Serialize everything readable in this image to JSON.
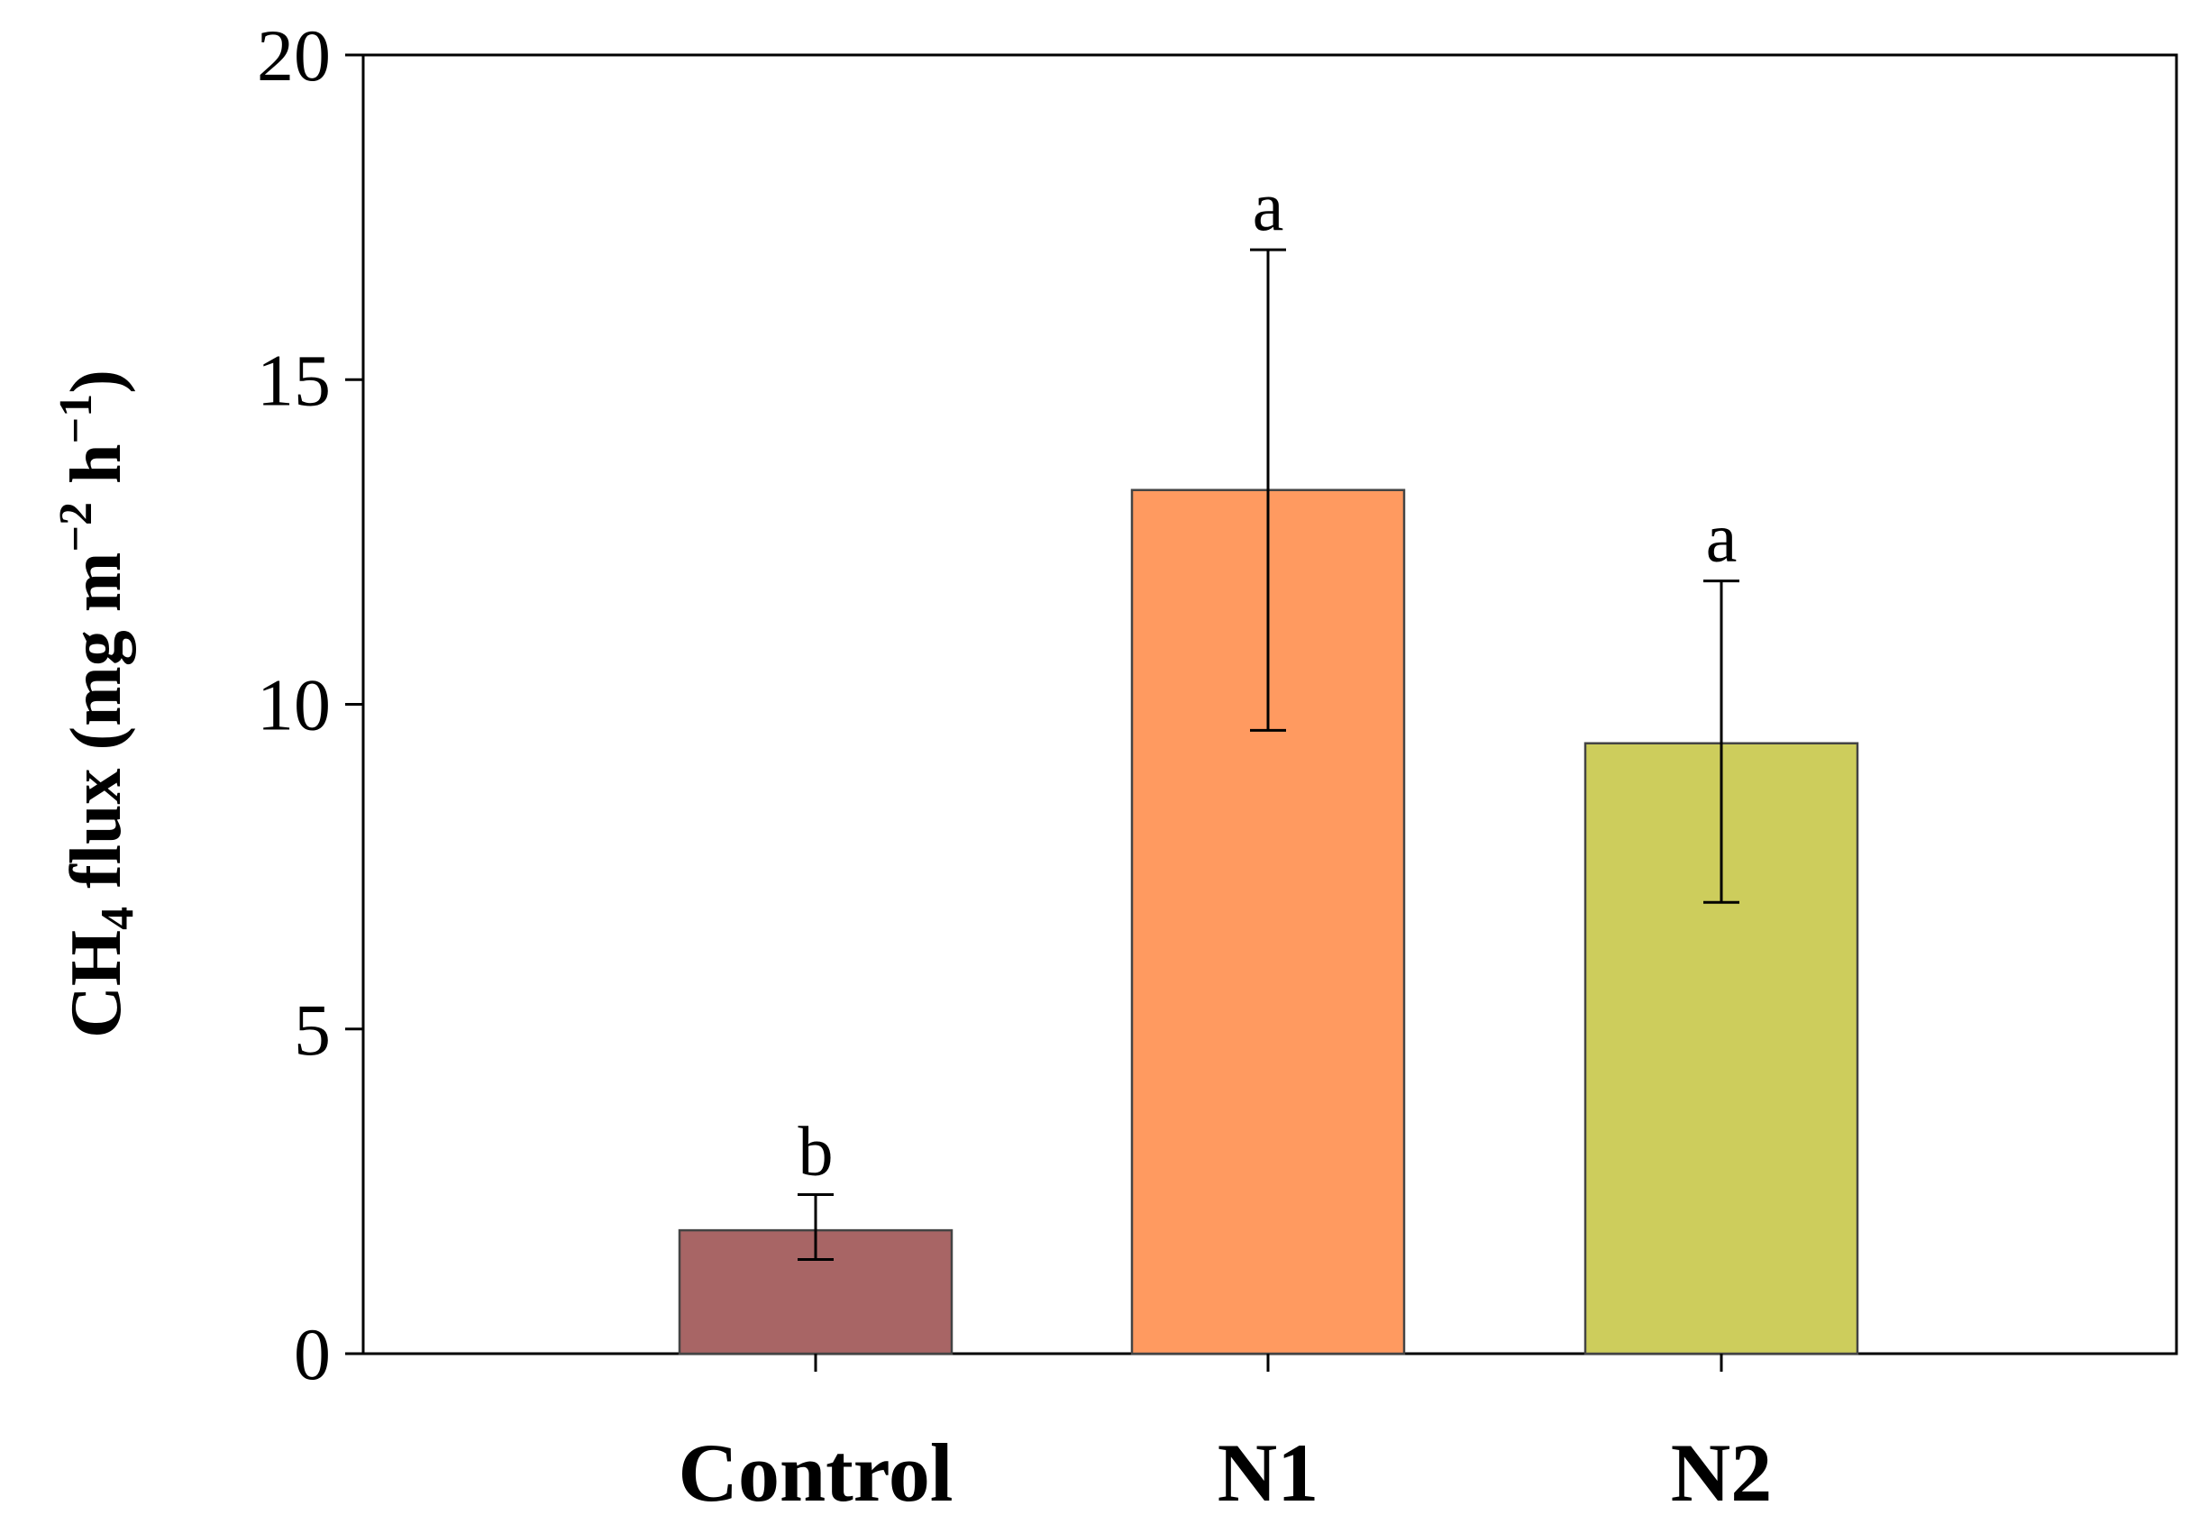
{
  "chart_data": {
    "type": "bar",
    "title": "",
    "xlabel": "",
    "ylabel": {
      "prefix": "CH",
      "subscript": "4",
      "middle": " flux (mg m",
      "sup1": "−2",
      "middle2": " h",
      "sup2": "−1",
      "suffix": ")"
    },
    "ylim": [
      0,
      20
    ],
    "yticks": [
      0,
      5,
      10,
      15,
      20
    ],
    "categories": [
      "Control",
      "N1",
      "N2"
    ],
    "values": [
      1.9,
      13.3,
      9.4
    ],
    "error_low": [
      1.45,
      9.6,
      6.95
    ],
    "error_high": [
      2.45,
      17.0,
      11.9
    ],
    "significance": [
      "b",
      "a",
      "a"
    ],
    "colors": [
      "#a86565",
      "#ff9a60",
      "#cdcd5c"
    ],
    "grid": false,
    "legend": "none"
  }
}
